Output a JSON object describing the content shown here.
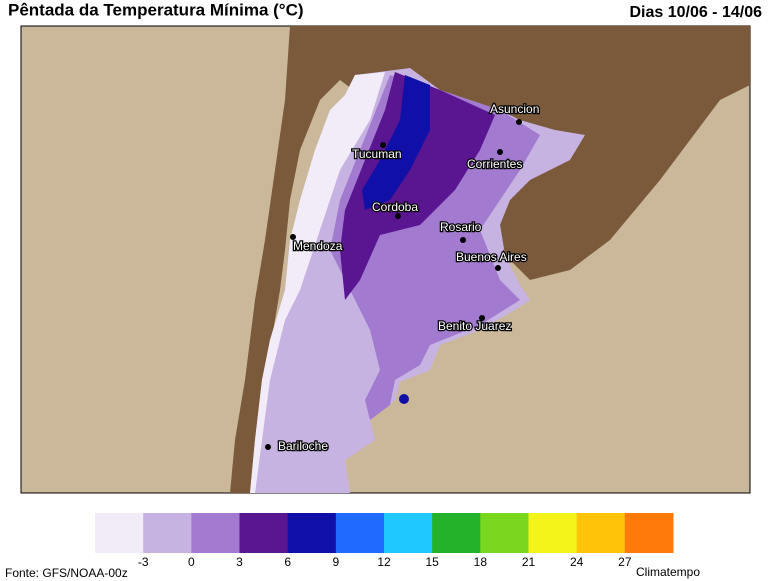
{
  "header": {
    "title": "Pêntada da Temperatura Mínima (°C)",
    "period": "Dias 10/06 - 14/06"
  },
  "cities": [
    "Asuncion",
    "Tucuman",
    "Corrientes",
    "Cordoba",
    "Rosario",
    "Mendoza",
    "Buenos Aires",
    "Benito Juarez",
    "Bariloche"
  ],
  "legend": {
    "ticks": [
      -3,
      0,
      3,
      6,
      9,
      12,
      15,
      18,
      21,
      24,
      27
    ],
    "colors": [
      "#f1ecf8",
      "#c7b3e2",
      "#a27ad0",
      "#5a1590",
      "#1010a8",
      "#1f6bff",
      "#1fc8ff",
      "#25b22b",
      "#79d81e",
      "#f4f41a",
      "#ffc40a",
      "#ff7a0a"
    ]
  },
  "footer": {
    "source": "Fonte: GFS/NOAA-00z",
    "brand": "Climatempo"
  }
}
